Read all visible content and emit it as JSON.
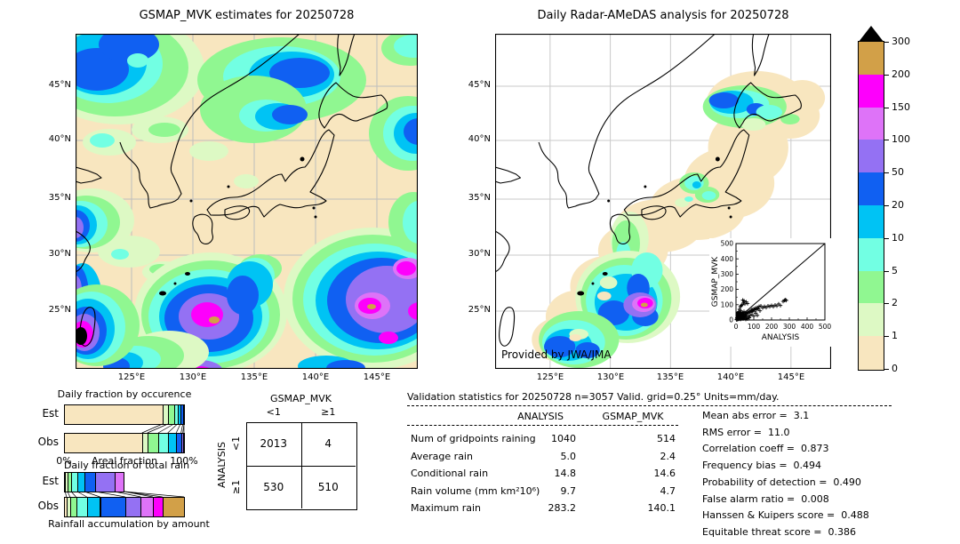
{
  "left_map": {
    "title": "GSMAP_MVK estimates for 20250728",
    "lat_ticks": [
      "45°N",
      "40°N",
      "35°N",
      "30°N",
      "25°N"
    ],
    "lon_ticks": [
      "125°E",
      "130°E",
      "135°E",
      "140°E",
      "145°E"
    ]
  },
  "right_map": {
    "title": "Daily Radar-AMeDAS analysis for 20250728",
    "credit": "Provided by JWA/JMA",
    "lat_ticks": [
      "45°N",
      "40°N",
      "35°N",
      "30°N",
      "25°N"
    ],
    "lon_ticks": [
      "125°E",
      "130°E",
      "135°E",
      "140°E",
      "145°E"
    ]
  },
  "palette": {
    "cream": "#F8E6BF",
    "palegreen": "#DDF9C4",
    "green": "#90F791",
    "aqua": "#72FFE3",
    "sky": "#00C3F4",
    "blue": "#1060F2",
    "purple": "#9471F3",
    "violet": "#DE73F8",
    "magenta": "#FD00FC",
    "gold": "#D2A048",
    "over": "#000000"
  },
  "colorbar": {
    "tick_labels": [
      "300",
      "200",
      "150",
      "100",
      "50",
      "20",
      "10",
      "5",
      "2",
      "1",
      "0"
    ],
    "colors": [
      "#D2A048",
      "#FD00FC",
      "#DE73F8",
      "#9471F3",
      "#1060F2",
      "#00C3F4",
      "#72FFE3",
      "#90F791",
      "#DDF9C4",
      "#F8E6BF"
    ],
    "overflow_color": "#000000",
    "units": "mm/day"
  },
  "occurrence_chart": {
    "title": "Daily fraction by occurence",
    "rows": [
      "Est",
      "Obs"
    ],
    "xlabel": "Areal fraction",
    "x_min_label": "0%",
    "x_max_label": "100%",
    "est_segments": [
      [
        "cream",
        82
      ],
      [
        "palegreen",
        4.5
      ],
      [
        "green",
        5
      ],
      [
        "aqua",
        3
      ],
      [
        "sky",
        2.5
      ],
      [
        "blue",
        2
      ],
      [
        "purple",
        1
      ]
    ],
    "obs_segments": [
      [
        "cream",
        65
      ],
      [
        "palegreen",
        4.5
      ],
      [
        "green",
        9
      ],
      [
        "aqua",
        8
      ],
      [
        "sky",
        7
      ],
      [
        "blue",
        4
      ],
      [
        "purple",
        1.5
      ],
      [
        "violet",
        1
      ]
    ]
  },
  "totalrain_chart": {
    "title": "Daily fraction of total rain",
    "rows": [
      "Est",
      "Obs"
    ],
    "caption": "Rainfall accumulation by amount",
    "est_segments": [
      [
        "cream",
        1
      ],
      [
        "palegreen",
        2
      ],
      [
        "green",
        3
      ],
      [
        "aqua",
        5
      ],
      [
        "sky",
        6
      ],
      [
        "blue",
        9
      ],
      [
        "purple",
        16
      ],
      [
        "violet",
        8
      ]
    ],
    "obs_segments": [
      [
        "cream",
        2
      ],
      [
        "palegreen",
        3
      ],
      [
        "green",
        5
      ],
      [
        "aqua",
        9
      ],
      [
        "sky",
        11
      ],
      [
        "blue",
        21
      ],
      [
        "purple",
        13
      ],
      [
        "violet",
        10
      ],
      [
        "magenta",
        8
      ],
      [
        "gold",
        18
      ]
    ]
  },
  "contingency": {
    "col_title": "GSMAP_MVK",
    "row_title": "ANALYSIS",
    "col_labels": [
      "<1",
      "≥1"
    ],
    "row_labels": [
      "<1",
      "≥1"
    ],
    "values": [
      [
        "2013",
        "4"
      ],
      [
        "530",
        "510"
      ]
    ]
  },
  "validation": {
    "title": "Validation statistics for 20250728  n=3057 Valid. grid=0.25° Units=mm/day.",
    "columns": [
      "ANALYSIS",
      "GSMAP_MVK"
    ],
    "rows": [
      [
        "Num of gridpoints raining",
        "1040",
        "514"
      ],
      [
        "Average rain",
        "5.0",
        "2.4"
      ],
      [
        "Conditional rain",
        "14.8",
        "14.6"
      ],
      [
        "Rain volume (mm km²10⁶)",
        "9.7",
        "4.7"
      ],
      [
        "Maximum rain",
        "283.2",
        "140.1"
      ]
    ]
  },
  "scores": [
    [
      "Mean abs error",
      "3.1"
    ],
    [
      "RMS error",
      "11.0"
    ],
    [
      "Correlation coeff",
      "0.873"
    ],
    [
      "Frequency bias",
      "0.494"
    ],
    [
      "Probability of detection",
      "0.490"
    ],
    [
      "False alarm ratio",
      "0.008"
    ],
    [
      "Hanssen & Kuipers score",
      "0.488"
    ],
    [
      "Equitable threat score",
      "0.386"
    ]
  ],
  "inset": {
    "xlabel": "ANALYSIS",
    "ylabel": "GSMAP_MVK",
    "ticks": [
      0,
      100,
      200,
      300,
      400,
      500
    ]
  },
  "chart_data": [
    {
      "type": "heatmap",
      "title": "GSMAP_MVK estimates for 20250728",
      "x_ticks": [
        "125°E",
        "130°E",
        "135°E",
        "140°E",
        "145°E"
      ],
      "y_ticks": [
        "45°N",
        "40°N",
        "35°N",
        "30°N",
        "25°N"
      ],
      "units": "mm/day",
      "levels": [
        0,
        1,
        2,
        5,
        10,
        20,
        50,
        100,
        150,
        200,
        300
      ],
      "legend_position": "right"
    },
    {
      "type": "heatmap",
      "title": "Daily Radar-AMeDAS analysis for 20250728",
      "x_ticks": [
        "125°E",
        "130°E",
        "135°E",
        "140°E",
        "145°E"
      ],
      "y_ticks": [
        "45°N",
        "40°N",
        "35°N",
        "30°N",
        "25°N"
      ],
      "units": "mm/day",
      "levels": [
        0,
        1,
        2,
        5,
        10,
        20,
        50,
        100,
        150,
        200,
        300
      ],
      "note": "Provided by JWA/JMA"
    },
    {
      "type": "bar",
      "title": "Daily fraction by occurence",
      "orientation": "horizontal",
      "stacked": true,
      "categories": [
        "Est",
        "Obs"
      ],
      "xlabel": "Areal fraction",
      "xlim": [
        "0%",
        "100%"
      ],
      "series": [
        {
          "name": "Est",
          "values": [
            82,
            4.5,
            5,
            3,
            2.5,
            2,
            1
          ]
        },
        {
          "name": "Obs",
          "values": [
            65,
            4.5,
            9,
            8,
            7,
            4,
            1.5,
            1
          ]
        }
      ]
    },
    {
      "type": "bar",
      "title": "Daily fraction of total rain",
      "orientation": "horizontal",
      "stacked": true,
      "categories": [
        "Est",
        "Obs"
      ],
      "xlabel": "Rainfall accumulation by amount",
      "series": [
        {
          "name": "Est",
          "values": [
            1,
            2,
            3,
            5,
            6,
            9,
            16,
            8
          ]
        },
        {
          "name": "Obs",
          "values": [
            2,
            3,
            5,
            9,
            11,
            21,
            13,
            10,
            8,
            18
          ]
        }
      ]
    },
    {
      "type": "table",
      "title": "Contingency table",
      "col_group": "GSMAP_MVK",
      "row_group": "ANALYSIS",
      "columns": [
        "<1",
        "≥1"
      ],
      "rows": [
        "<1",
        "≥1"
      ],
      "values": [
        [
          2013,
          4
        ],
        [
          530,
          510
        ]
      ]
    },
    {
      "type": "table",
      "title": "Validation statistics for 20250728  n=3057 Valid. grid=0.25° Units=mm/day.",
      "columns": [
        "ANALYSIS",
        "GSMAP_MVK"
      ],
      "rows": [
        [
          "Num of gridpoints raining",
          1040,
          514
        ],
        [
          "Average rain",
          5.0,
          2.4
        ],
        [
          "Conditional rain",
          14.8,
          14.6
        ],
        [
          "Rain volume (mm km²10⁶)",
          9.7,
          4.7
        ],
        [
          "Maximum rain",
          283.2,
          140.1
        ]
      ]
    },
    {
      "type": "scatter",
      "xlabel": "ANALYSIS",
      "ylabel": "GSMAP_MVK",
      "xlim": [
        0,
        500
      ],
      "ylim": [
        0,
        500
      ],
      "marker": "+",
      "diagonal": true,
      "points": [
        [
          3,
          2
        ],
        [
          5,
          6
        ],
        [
          7,
          3
        ],
        [
          9,
          9
        ],
        [
          11,
          5
        ],
        [
          13,
          12
        ],
        [
          15,
          8
        ],
        [
          17,
          15
        ],
        [
          19,
          6
        ],
        [
          21,
          18
        ],
        [
          23,
          10
        ],
        [
          25,
          22
        ],
        [
          27,
          14
        ],
        [
          29,
          8
        ],
        [
          31,
          25
        ],
        [
          33,
          18
        ],
        [
          6,
          14
        ],
        [
          10,
          20
        ],
        [
          14,
          24
        ],
        [
          18,
          28
        ],
        [
          22,
          32
        ],
        [
          26,
          5
        ],
        [
          30,
          12
        ],
        [
          34,
          30
        ],
        [
          38,
          22
        ],
        [
          42,
          16
        ],
        [
          46,
          28
        ],
        [
          50,
          20
        ],
        [
          54,
          34
        ],
        [
          58,
          26
        ],
        [
          40,
          8
        ],
        [
          44,
          38
        ],
        [
          48,
          12
        ],
        [
          52,
          42
        ],
        [
          35,
          45
        ],
        [
          45,
          55
        ],
        [
          55,
          48
        ],
        [
          60,
          40
        ],
        [
          65,
          52
        ],
        [
          70,
          45
        ],
        [
          75,
          58
        ],
        [
          80,
          50
        ],
        [
          85,
          62
        ],
        [
          90,
          55
        ],
        [
          60,
          12
        ],
        [
          70,
          25
        ],
        [
          80,
          30
        ],
        [
          90,
          70
        ],
        [
          95,
          60
        ],
        [
          100,
          72
        ],
        [
          105,
          65
        ],
        [
          110,
          78
        ],
        [
          115,
          68
        ],
        [
          120,
          82
        ],
        [
          125,
          72
        ],
        [
          130,
          88
        ],
        [
          135,
          60
        ],
        [
          140,
          92
        ],
        [
          150,
          80
        ],
        [
          160,
          88
        ],
        [
          170,
          82
        ],
        [
          180,
          92
        ],
        [
          190,
          88
        ],
        [
          200,
          95
        ],
        [
          210,
          88
        ],
        [
          220,
          98
        ],
        [
          230,
          92
        ],
        [
          240,
          105
        ],
        [
          250,
          95
        ],
        [
          265,
          122
        ],
        [
          272,
          128
        ],
        [
          278,
          132
        ],
        [
          283,
          128
        ],
        [
          35,
          100
        ],
        [
          42,
          112
        ],
        [
          50,
          105
        ],
        [
          58,
          118
        ],
        [
          45,
          125
        ],
        [
          38,
          130
        ],
        [
          65,
          108
        ],
        [
          30,
          95
        ],
        [
          25,
          88
        ],
        [
          55,
          5
        ],
        [
          65,
          8
        ],
        [
          75,
          15
        ],
        [
          28,
          60
        ],
        [
          20,
          70
        ],
        [
          15,
          55
        ],
        [
          12,
          45
        ],
        [
          90,
          35
        ],
        [
          100,
          25
        ],
        [
          110,
          45
        ],
        [
          120,
          30
        ]
      ]
    },
    {
      "type": "table",
      "title": "Scores",
      "rows": [
        [
          "Mean abs error",
          3.1
        ],
        [
          "RMS error",
          11.0
        ],
        [
          "Correlation coeff",
          0.873
        ],
        [
          "Frequency bias",
          0.494
        ],
        [
          "Probability of detection",
          0.49
        ],
        [
          "False alarm ratio",
          0.008
        ],
        [
          "Hanssen & Kuipers score",
          0.488
        ],
        [
          "Equitable threat score",
          0.386
        ]
      ]
    }
  ]
}
